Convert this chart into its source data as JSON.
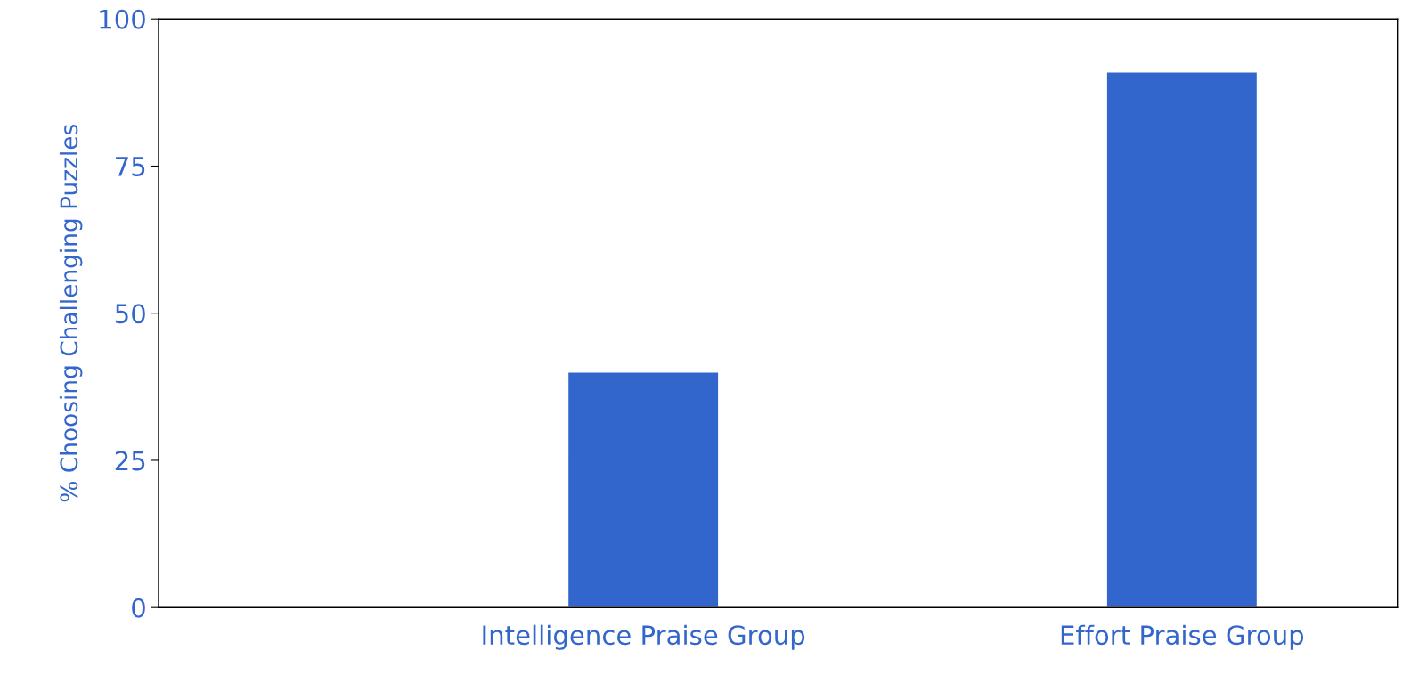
{
  "chart_data": {
    "type": "bar",
    "ylabel": "% Choosing Challenging Puzzles",
    "categories": [
      "Intelligence Praise Group",
      "Effort Praise Group"
    ],
    "values": [
      40,
      91
    ],
    "color": "#3366cc",
    "ylim": [
      0,
      100
    ],
    "yticks": [
      0,
      25,
      50,
      75,
      100
    ],
    "grid": false,
    "legend": false
  }
}
